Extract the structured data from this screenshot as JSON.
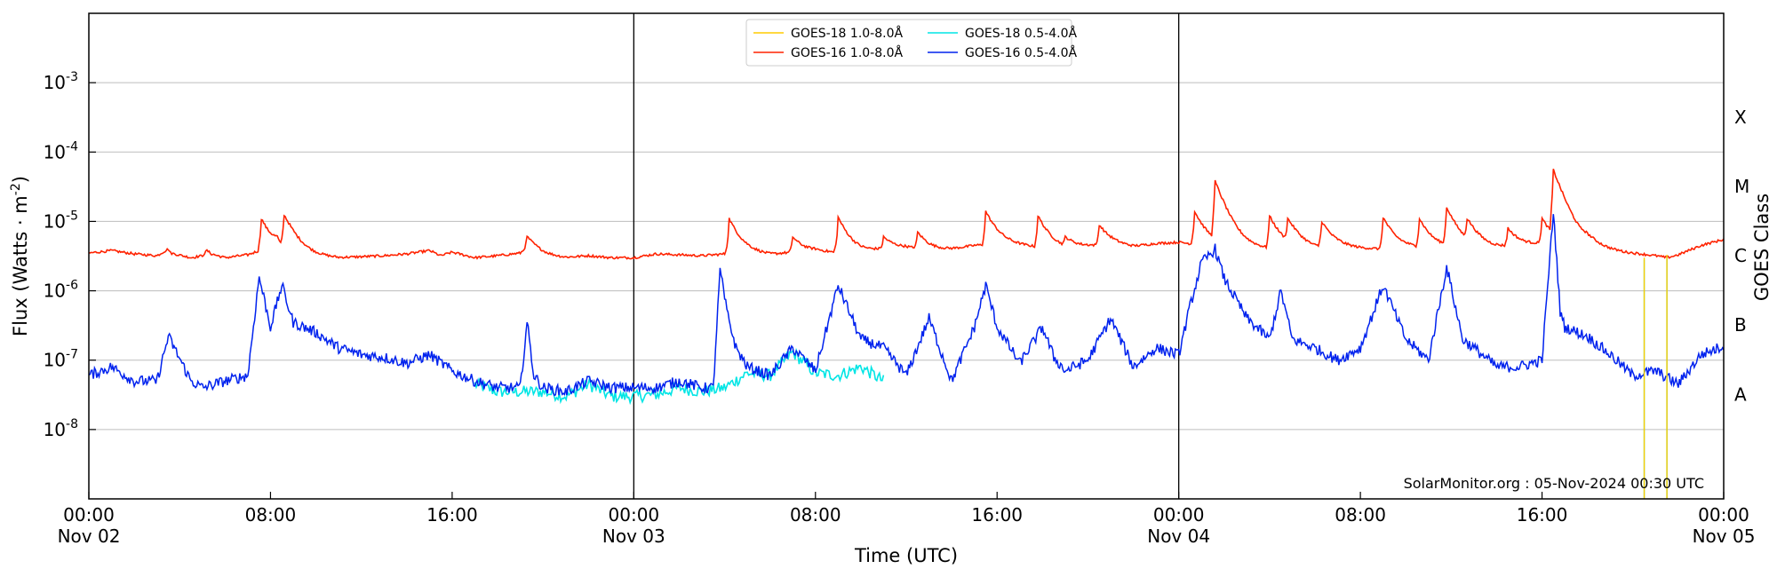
{
  "chart_data": {
    "type": "line",
    "title": "",
    "xlabel": "Time (UTC)",
    "ylabel": "Flux (Watts · m",
    "ylabel_sup": "-2",
    "ylabel_close": ")",
    "right_axis_label": "GOES Class",
    "y_scale": "log",
    "ylim_exponents": [
      -9,
      -2
    ],
    "y_ticks": [
      {
        "base": "10",
        "exp": "-8",
        "value": 1e-08
      },
      {
        "base": "10",
        "exp": "-7",
        "value": 1e-07
      },
      {
        "base": "10",
        "exp": "-6",
        "value": 1e-06
      },
      {
        "base": "10",
        "exp": "-5",
        "value": 1e-05
      },
      {
        "base": "10",
        "exp": "-4",
        "value": 0.0001
      },
      {
        "base": "10",
        "exp": "-3",
        "value": 0.001
      }
    ],
    "goes_classes": [
      {
        "label": "A",
        "value": 1e-08
      },
      {
        "label": "B",
        "value": 1e-07
      },
      {
        "label": "C",
        "value": 1e-06
      },
      {
        "label": "M",
        "value": 1e-05
      },
      {
        "label": "X",
        "value": 0.0001
      }
    ],
    "xlim_hours": [
      0,
      72
    ],
    "x_ticks": [
      {
        "hour": 0,
        "time": "00:00",
        "date": "Nov 02"
      },
      {
        "hour": 8,
        "time": "08:00",
        "date": ""
      },
      {
        "hour": 16,
        "time": "16:00",
        "date": ""
      },
      {
        "hour": 24,
        "time": "00:00",
        "date": "Nov 03"
      },
      {
        "hour": 32,
        "time": "08:00",
        "date": ""
      },
      {
        "hour": 40,
        "time": "16:00",
        "date": ""
      },
      {
        "hour": 48,
        "time": "00:00",
        "date": "Nov 04"
      },
      {
        "hour": 56,
        "time": "08:00",
        "date": ""
      },
      {
        "hour": 64,
        "time": "16:00",
        "date": ""
      },
      {
        "hour": 72,
        "time": "00:00",
        "date": "Nov 05"
      }
    ],
    "day_boundaries_hours": [
      24,
      48
    ],
    "grid": {
      "horizontal": true,
      "vertical": false
    },
    "legend_position": "top-center",
    "legend": [
      {
        "name": "GOES-18 1.0-8.0Å",
        "color": "#ffcc00"
      },
      {
        "name": "GOES-18 0.5-4.0Å",
        "color": "#00e5e5"
      },
      {
        "name": "GOES-16 1.0-8.0Å",
        "color": "#ff2200"
      },
      {
        "name": "GOES-16 0.5-4.0Å",
        "color": "#0022ee"
      }
    ],
    "credit": "SolarMonitor.org : 05-Nov-2024 00:30 UTC",
    "series": [
      {
        "name": "GOES-16 1.0-8.0Å",
        "color": "#ff2200",
        "points": [
          [
            0.0,
            3.5e-06
          ],
          [
            1.0,
            3.8e-06
          ],
          [
            2.0,
            3.4e-06
          ],
          [
            3.0,
            3.2e-06
          ],
          [
            3.5,
            4e-06
          ],
          [
            3.6,
            3.5e-06
          ],
          [
            4.5,
            3e-06
          ],
          [
            5.0,
            3.2e-06
          ],
          [
            5.2,
            3.8e-06
          ],
          [
            5.4,
            3.4e-06
          ],
          [
            6.0,
            3e-06
          ],
          [
            7.0,
            3.3e-06
          ],
          [
            7.5,
            3.8e-06
          ],
          [
            7.8,
            3.5e-06
          ],
          [
            8.3,
            4.8e-06
          ],
          [
            8.4,
            3.8e-06
          ],
          [
            9.0,
            3.6e-06
          ],
          [
            10.0,
            3.2e-06
          ],
          [
            11.0,
            3e-06
          ],
          [
            12.0,
            3.1e-06
          ],
          [
            13.0,
            3.2e-06
          ],
          [
            14.0,
            3.4e-06
          ],
          [
            15.0,
            3.8e-06
          ],
          [
            15.5,
            3.2e-06
          ],
          [
            16.0,
            3.6e-06
          ],
          [
            17.0,
            3e-06
          ],
          [
            18.0,
            3.2e-06
          ],
          [
            19.0,
            3.5e-06
          ],
          [
            19.3,
            4.2e-06
          ],
          [
            19.5,
            3.6e-06
          ],
          [
            20.0,
            3.2e-06
          ],
          [
            21.0,
            3e-06
          ],
          [
            22.0,
            3.2e-06
          ],
          [
            23.0,
            3e-06
          ],
          [
            24.0,
            3e-06
          ],
          [
            24.5,
            3.2e-06
          ],
          [
            25.0,
            3.4e-06
          ],
          [
            26.0,
            3.3e-06
          ],
          [
            27.0,
            3.2e-06
          ],
          [
            28.0,
            3.4e-06
          ],
          [
            29.0,
            3.5e-06
          ],
          [
            30.0,
            3.3e-06
          ],
          [
            31.0,
            3.6e-06
          ],
          [
            32.0,
            3.8e-06
          ],
          [
            33.0,
            3.5e-06
          ],
          [
            34.0,
            3.6e-06
          ],
          [
            35.0,
            4e-06
          ],
          [
            36.0,
            4.2e-06
          ],
          [
            37.0,
            3.8e-06
          ],
          [
            38.0,
            4e-06
          ],
          [
            39.0,
            4.5e-06
          ],
          [
            40.0,
            4.8e-06
          ],
          [
            41.0,
            4.5e-06
          ],
          [
            42.0,
            4.2e-06
          ],
          [
            43.0,
            4e-06
          ],
          [
            44.0,
            4.4e-06
          ],
          [
            45.0,
            4.6e-06
          ],
          [
            46.0,
            4.3e-06
          ],
          [
            47.0,
            4.8e-06
          ],
          [
            48.0,
            5e-06
          ],
          [
            49.0,
            4.6e-06
          ],
          [
            50.0,
            4.4e-06
          ],
          [
            51.0,
            4.2e-06
          ],
          [
            52.0,
            4e-06
          ],
          [
            53.0,
            4.2e-06
          ],
          [
            54.0,
            4e-06
          ],
          [
            55.0,
            4.3e-06
          ],
          [
            56.0,
            4.1e-06
          ],
          [
            57.0,
            4e-06
          ],
          [
            58.0,
            4.2e-06
          ],
          [
            59.0,
            4.1e-06
          ],
          [
            60.0,
            4.3e-06
          ],
          [
            61.0,
            4e-06
          ],
          [
            62.0,
            4.2e-06
          ],
          [
            63.0,
            4.5e-06
          ],
          [
            64.0,
            4.8e-06
          ],
          [
            65.0,
            4.5e-06
          ],
          [
            66.0,
            4.2e-06
          ],
          [
            67.0,
            3.8e-06
          ],
          [
            68.0,
            3.5e-06
          ],
          [
            69.0,
            3.2e-06
          ],
          [
            69.5,
            3e-06
          ],
          [
            70.0,
            3.3e-06
          ],
          [
            71.0,
            4.5e-06
          ],
          [
            72.0,
            5.5e-06
          ]
        ],
        "flares": [
          [
            7.6,
            1.1e-05
          ],
          [
            8.6,
            1.25e-05
          ],
          [
            19.3,
            6e-06
          ],
          [
            28.2,
            1.1e-05
          ],
          [
            31.0,
            6e-06
          ],
          [
            33.0,
            1.15e-05
          ],
          [
            35.0,
            6e-06
          ],
          [
            36.5,
            7e-06
          ],
          [
            39.5,
            1.4e-05
          ],
          [
            41.8,
            1.2e-05
          ],
          [
            43.0,
            6e-06
          ],
          [
            44.5,
            9e-06
          ],
          [
            48.7,
            1.4e-05
          ],
          [
            49.6,
            3.8e-05
          ],
          [
            52.0,
            1.2e-05
          ],
          [
            52.8,
            1.1e-05
          ],
          [
            54.3,
            1e-05
          ],
          [
            57.0,
            1.15e-05
          ],
          [
            58.6,
            1.1e-05
          ],
          [
            59.8,
            1.6e-05
          ],
          [
            60.7,
            1.1e-05
          ],
          [
            62.5,
            8e-06
          ],
          [
            64.0,
            1.1e-05
          ],
          [
            64.5,
            5.5e-05
          ],
          [
            65.5,
            8e-06
          ]
        ]
      },
      {
        "name": "GOES-16 0.5-4.0Å",
        "color": "#0022ee",
        "points": [
          [
            0.0,
            6e-08
          ],
          [
            1.0,
            8e-08
          ],
          [
            2.0,
            5e-08
          ],
          [
            3.0,
            5e-08
          ],
          [
            3.5,
            2.2e-07
          ],
          [
            4.5,
            5e-08
          ],
          [
            5.0,
            4e-08
          ],
          [
            6.0,
            5e-08
          ],
          [
            7.0,
            6e-08
          ],
          [
            7.5,
            1.6e-06
          ],
          [
            8.0,
            3e-07
          ],
          [
            8.5,
            1.2e-06
          ],
          [
            9.0,
            3.5e-07
          ],
          [
            10.0,
            2.5e-07
          ],
          [
            11.0,
            1.5e-07
          ],
          [
            12.0,
            1.2e-07
          ],
          [
            13.0,
            1.1e-07
          ],
          [
            14.0,
            9e-08
          ],
          [
            15.0,
            1.2e-07
          ],
          [
            16.0,
            7e-08
          ],
          [
            17.0,
            5e-08
          ],
          [
            18.0,
            4e-08
          ],
          [
            19.0,
            4e-08
          ],
          [
            19.3,
            3.5e-07
          ],
          [
            19.6,
            6e-08
          ],
          [
            20.0,
            4e-08
          ],
          [
            21.0,
            3.5e-08
          ],
          [
            22.0,
            5e-08
          ],
          [
            23.0,
            4e-08
          ],
          [
            24.0,
            4e-08
          ],
          [
            25.0,
            4e-08
          ],
          [
            26.0,
            5e-08
          ],
          [
            27.0,
            4e-08
          ],
          [
            27.5,
            4e-08
          ],
          [
            27.8,
            2e-06
          ],
          [
            28.1,
            5e-07
          ],
          [
            28.5,
            1.5e-07
          ],
          [
            29.0,
            8e-08
          ],
          [
            30.0,
            6e-08
          ],
          [
            31.0,
            1.5e-07
          ],
          [
            32.0,
            7e-08
          ],
          [
            33.0,
            1.2e-06
          ],
          [
            34.0,
            2e-07
          ],
          [
            35.0,
            1.5e-07
          ],
          [
            36.0,
            6e-08
          ],
          [
            37.0,
            4e-07
          ],
          [
            38.0,
            5e-08
          ],
          [
            39.0,
            3e-07
          ],
          [
            39.5,
            1.2e-06
          ],
          [
            40.0,
            3e-07
          ],
          [
            41.0,
            9e-08
          ],
          [
            42.0,
            3e-07
          ],
          [
            42.5,
            1.1e-07
          ],
          [
            43.0,
            7e-08
          ],
          [
            44.0,
            1e-07
          ],
          [
            45.0,
            4e-07
          ],
          [
            46.0,
            8e-08
          ],
          [
            47.0,
            1.5e-07
          ],
          [
            48.0,
            1.2e-07
          ],
          [
            48.5,
            6e-07
          ],
          [
            49.0,
            2.5e-06
          ],
          [
            49.6,
            4e-06
          ],
          [
            50.0,
            1.5e-06
          ],
          [
            51.0,
            4e-07
          ],
          [
            52.0,
            2e-07
          ],
          [
            52.5,
            1e-06
          ],
          [
            53.0,
            2e-07
          ],
          [
            54.0,
            1.5e-07
          ],
          [
            55.0,
            1e-07
          ],
          [
            56.0,
            1.5e-07
          ],
          [
            57.0,
            1.2e-06
          ],
          [
            58.0,
            2e-07
          ],
          [
            59.0,
            1e-07
          ],
          [
            59.8,
            2.2e-06
          ],
          [
            60.5,
            2e-07
          ],
          [
            61.0,
            1.5e-07
          ],
          [
            62.0,
            8e-08
          ],
          [
            63.0,
            8e-08
          ],
          [
            64.0,
            1e-07
          ],
          [
            64.5,
            1.4e-05
          ],
          [
            64.8,
            5e-07
          ],
          [
            65.0,
            3e-07
          ],
          [
            66.0,
            2.2e-07
          ],
          [
            67.0,
            1.2e-07
          ],
          [
            68.0,
            6e-08
          ],
          [
            69.0,
            7e-08
          ],
          [
            70.0,
            4.5e-08
          ],
          [
            71.0,
            1.2e-07
          ],
          [
            72.0,
            1.6e-07
          ]
        ]
      },
      {
        "name": "GOES-18 0.5-4.0Å",
        "color": "#00e5e5",
        "points": [
          [
            17.0,
            4.5e-08
          ],
          [
            18.0,
            3.5e-08
          ],
          [
            19.0,
            3.5e-08
          ],
          [
            20.0,
            3.5e-08
          ],
          [
            21.0,
            3e-08
          ],
          [
            22.0,
            4.5e-08
          ],
          [
            23.0,
            3e-08
          ],
          [
            24.0,
            3e-08
          ],
          [
            25.0,
            3.2e-08
          ],
          [
            26.0,
            4e-08
          ],
          [
            27.0,
            3.5e-08
          ],
          [
            28.0,
            4e-08
          ],
          [
            29.0,
            6.5e-08
          ],
          [
            30.0,
            6e-08
          ],
          [
            31.0,
            1.3e-07
          ],
          [
            32.0,
            6.5e-08
          ],
          [
            33.0,
            6e-08
          ],
          [
            34.0,
            8e-08
          ],
          [
            35.0,
            5e-08
          ]
        ],
        "spikes": [
          [
            68.5,
            2.8e-06,
            1e-09
          ],
          [
            69.5,
            3.2e-06,
            1e-09
          ]
        ]
      },
      {
        "name": "GOES-18 1.0-8.0Å",
        "color": "#ffcc00",
        "spikes": [
          [
            68.5,
            3e-06,
            1e-09
          ],
          [
            69.5,
            3.3e-06,
            1e-09
          ]
        ]
      }
    ]
  }
}
